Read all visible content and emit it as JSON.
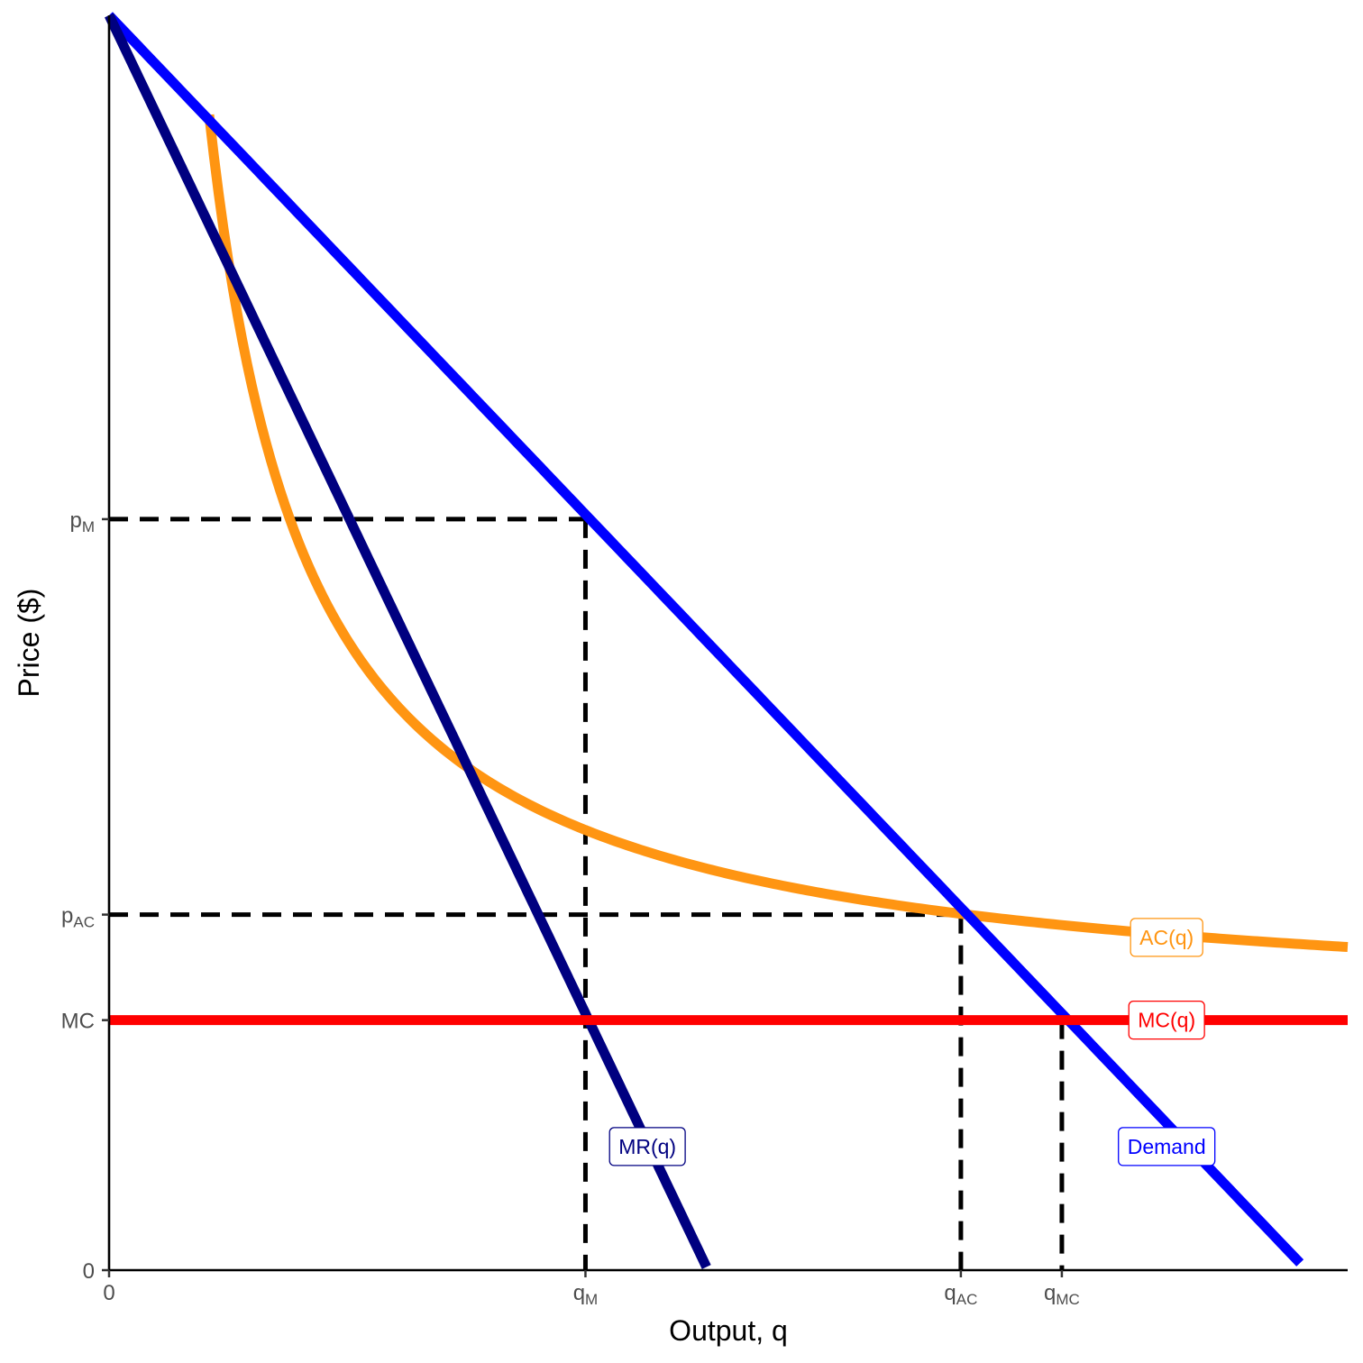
{
  "chart_data": {
    "type": "line",
    "title": "",
    "xlabel": "Output, q",
    "ylabel": "Price ($)",
    "xlim": [
      0,
      13
    ],
    "ylim": [
      0,
      13.2
    ],
    "grid": false,
    "x_ticks": [
      {
        "value": 0,
        "label": "0",
        "sub": ""
      },
      {
        "value": 5,
        "label": "q",
        "sub": "M"
      },
      {
        "value": 8.94,
        "label": "q",
        "sub": "AC"
      },
      {
        "value": 10,
        "label": "q",
        "sub": "MC"
      }
    ],
    "y_ticks": [
      {
        "value": 0,
        "label": "0",
        "sub": ""
      },
      {
        "value": 2.63,
        "label": "MC",
        "sub": ""
      },
      {
        "value": 3.74,
        "label": "p",
        "sub": "AC"
      },
      {
        "value": 7.9,
        "label": "p",
        "sub": "M"
      }
    ],
    "series": [
      {
        "name": "Demand",
        "label": "Demand",
        "color": "#0000FF",
        "kind": "demand",
        "intercept": 13.2,
        "slope": -1.05,
        "x_range": [
          0,
          12.5
        ],
        "label_at": [
          11.1,
          1.3
        ]
      },
      {
        "name": "MR(q)",
        "label": "MR(q)",
        "color": "#000080",
        "kind": "mr",
        "intercept": 13.2,
        "slope": -2.1,
        "x_range": [
          0,
          6.27
        ],
        "label_at": [
          5.65,
          1.3
        ]
      },
      {
        "name": "MC(q)",
        "label": "MC(q)",
        "color": "#FF0000",
        "kind": "constant",
        "value": 2.63,
        "x_range": [
          0,
          13
        ],
        "label_at": [
          11.1,
          2.63
        ]
      },
      {
        "name": "AC(q)",
        "label": "AC(q)",
        "color": "#FF9512",
        "kind": "average_cost",
        "mc": 2.63,
        "fixed_cost": 10,
        "x_range": [
          1.05,
          13
        ],
        "label_at": [
          11.1,
          3.5
        ]
      }
    ],
    "reference_lines": [
      {
        "from": [
          0,
          7.9
        ],
        "to": [
          5,
          7.9
        ]
      },
      {
        "from": [
          5,
          7.9
        ],
        "to": [
          5,
          0
        ]
      },
      {
        "from": [
          0,
          3.74
        ],
        "to": [
          8.94,
          3.74
        ]
      },
      {
        "from": [
          8.94,
          3.74
        ],
        "to": [
          8.94,
          0
        ]
      },
      {
        "from": [
          10,
          2.63
        ],
        "to": [
          10,
          0
        ]
      }
    ]
  }
}
